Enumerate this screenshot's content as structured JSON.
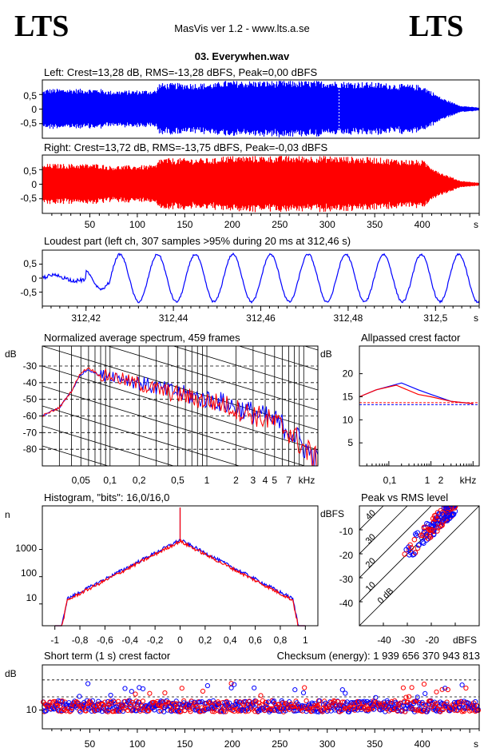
{
  "header": {
    "logo_left": "LTS",
    "logo_right": "LTS",
    "app_title": "MasVis ver 1.2 - www.lts.a.se",
    "track_title": "03. Everywhen.wav"
  },
  "colors": {
    "left": "#0000ff",
    "right": "#ff0000",
    "axis": "#000000"
  },
  "chart_data": [
    {
      "id": "left-waveform",
      "type": "area",
      "title": "Left: Crest=13,28 dB, RMS=-13,28 dBFS, Peak=0,00 dBFS",
      "yticks": [
        "0,5",
        "0",
        "-0,5"
      ],
      "ylim": [
        -1,
        1
      ],
      "xlim": [
        0,
        460
      ],
      "marker_x": 312.46,
      "envelope": {
        "x": [
          0,
          5,
          60,
          70,
          120,
          122,
          184,
          186,
          300,
          350,
          370,
          400,
          420,
          440,
          460
        ],
        "amp": [
          0.65,
          0.72,
          0.72,
          0.65,
          0.68,
          0.92,
          0.92,
          1.0,
          1.0,
          0.95,
          0.9,
          0.85,
          0.4,
          0.12,
          0.05
        ]
      }
    },
    {
      "id": "right-waveform",
      "type": "area",
      "title": "Right: Crest=13,72 dB, RMS=-13,75 dBFS, Peak=-0,03 dBFS",
      "yticks": [
        "0,5",
        "0",
        "-0,5"
      ],
      "ylim": [
        -1,
        1
      ],
      "xlim": [
        0,
        460
      ],
      "xticks": [
        "50",
        "100",
        "150",
        "200",
        "250",
        "300",
        "350",
        "400"
      ],
      "xunit": "s",
      "envelope": {
        "x": [
          0,
          5,
          60,
          70,
          120,
          122,
          184,
          186,
          300,
          350,
          370,
          400,
          420,
          440,
          460
        ],
        "amp": [
          0.65,
          0.72,
          0.72,
          0.65,
          0.68,
          0.92,
          0.92,
          1.0,
          1.0,
          0.95,
          0.9,
          0.85,
          0.4,
          0.12,
          0.05
        ]
      }
    },
    {
      "id": "loudest-part",
      "type": "line",
      "title": "Loudest part (left  ch, 307 samples >95% during 20 ms at 312,46 s)",
      "yticks": [
        "0,5",
        "0",
        "-0,5"
      ],
      "ylim": [
        -1,
        1
      ],
      "xlim": [
        312.41,
        312.51
      ],
      "xticks": [
        "312,42",
        "312,44",
        "312,46",
        "312,48",
        "312,5"
      ],
      "xunit": "s"
    },
    {
      "id": "average-spectrum",
      "type": "line",
      "title": "Normalized average spectrum, 459 frames",
      "ylabel": "dB",
      "yticks": [
        "-30",
        "-40",
        "-50",
        "-60",
        "-70",
        "-80"
      ],
      "ylim": [
        -90,
        -18
      ],
      "xticks": [
        "0,05",
        "0,1",
        "0,2",
        "0,5",
        "1",
        "2",
        "3",
        "4",
        "5",
        "7"
      ],
      "xunit": "kHz",
      "series": [
        {
          "name": "left",
          "points": [
            [
              0.02,
              -60
            ],
            [
              0.03,
              -55
            ],
            [
              0.04,
              -45
            ],
            [
              0.05,
              -35
            ],
            [
              0.06,
              -32
            ],
            [
              0.08,
              -36
            ],
            [
              0.1,
              -35
            ],
            [
              0.15,
              -38
            ],
            [
              0.2,
              -40
            ],
            [
              0.3,
              -43
            ],
            [
              0.5,
              -46
            ],
            [
              0.8,
              -49
            ],
            [
              1,
              -50
            ],
            [
              1.5,
              -52
            ],
            [
              2,
              -55
            ],
            [
              3,
              -58
            ],
            [
              4,
              -61
            ],
            [
              5,
              -63
            ],
            [
              7,
              -68
            ],
            [
              10,
              -78
            ],
            [
              14,
              -88
            ]
          ]
        },
        {
          "name": "right",
          "points": [
            [
              0.02,
              -60
            ],
            [
              0.03,
              -55
            ],
            [
              0.04,
              -45
            ],
            [
              0.05,
              -34
            ],
            [
              0.06,
              -31
            ],
            [
              0.08,
              -36
            ],
            [
              0.1,
              -36
            ],
            [
              0.15,
              -39
            ],
            [
              0.2,
              -41
            ],
            [
              0.3,
              -44
            ],
            [
              0.5,
              -47
            ],
            [
              0.8,
              -50
            ],
            [
              1,
              -51
            ],
            [
              1.5,
              -53
            ],
            [
              2,
              -56
            ],
            [
              3,
              -59
            ],
            [
              4,
              -62
            ],
            [
              5,
              -64
            ],
            [
              7,
              -69
            ],
            [
              10,
              -79
            ],
            [
              14,
              -88
            ]
          ]
        }
      ]
    },
    {
      "id": "allpassed-crest",
      "type": "line",
      "title": "Allpassed crest factor",
      "ylabel": "dB",
      "yticks": [
        "20",
        "15",
        "10",
        "5"
      ],
      "ylim": [
        0,
        26
      ],
      "xticks": [
        "0,1",
        "1",
        "2",
        "kHz"
      ],
      "series": [
        {
          "name": "left",
          "points": [
            [
              0.02,
              15
            ],
            [
              0.05,
              16.5
            ],
            [
              0.2,
              18
            ],
            [
              0.5,
              16.5
            ],
            [
              1,
              15.5
            ],
            [
              3,
              14
            ],
            [
              10,
              13.5
            ]
          ]
        },
        {
          "name": "right",
          "points": [
            [
              0.02,
              15
            ],
            [
              0.05,
              16.5
            ],
            [
              0.15,
              17.5
            ],
            [
              0.5,
              15.5
            ],
            [
              1,
              15
            ],
            [
              3,
              14
            ],
            [
              10,
              13.5
            ]
          ]
        }
      ],
      "reference_left": 13.28,
      "reference_right": 13.72
    },
    {
      "id": "histogram",
      "type": "line",
      "title": "Histogram, \"bits\": 16,0/16,0",
      "ylabel": "n",
      "yticks": [
        "1000",
        "100",
        "10"
      ],
      "xticks": [
        "-1",
        "-0,8",
        "-0,6",
        "-0,4",
        "-0,2",
        "0",
        "0,2",
        "0,4",
        "0,6",
        "0,8",
        "1"
      ],
      "xlim": [
        -1.1,
        1.1
      ]
    },
    {
      "id": "peak-vs-rms",
      "type": "scatter",
      "title": "Peak vs RMS level",
      "ylabel": "dBFS",
      "yticks": [
        "-10",
        "-20",
        "-30",
        "-40"
      ],
      "xticks": [
        "-40",
        "-30",
        "-20"
      ],
      "xunit": "dBFS",
      "diagonal_labels": [
        "40",
        "30",
        "20",
        "10",
        "0 dB"
      ],
      "xlim": [
        -50,
        0
      ],
      "ylim": [
        -50,
        0
      ]
    },
    {
      "id": "short-term-crest",
      "type": "scatter",
      "title": "Short term (1 s) crest factor",
      "checksum": "Checksum (energy):  1 939 656 370 943 813",
      "ylabel": "dB",
      "yticks": [
        "10"
      ],
      "xticks": [
        "50",
        "100",
        "150",
        "200",
        "250",
        "300",
        "350",
        "400"
      ],
      "xunit": "s",
      "xlim": [
        0,
        460
      ]
    }
  ]
}
